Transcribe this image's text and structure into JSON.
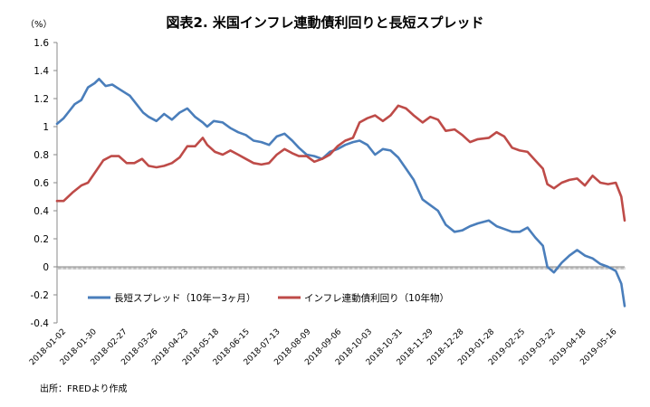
{
  "chart_data": {
    "type": "line",
    "title": "図表2. 米国インフレ連動債利回りと長短スプレッド",
    "unit_label": "（%）",
    "source": "出所：FREDより作成",
    "ylim": [
      -0.4,
      1.6
    ],
    "y_ticks": [
      1.6,
      1.4,
      1.2,
      1.0,
      0.8,
      0.6,
      0.4,
      0.2,
      0.0,
      -0.2,
      -0.4
    ],
    "y_tick_labels": [
      "1.6",
      "1.4",
      "1.2",
      "1",
      "0.8",
      "0.6",
      "0.4",
      "0.2",
      "0",
      "-0.2",
      "-0.4"
    ],
    "x_start": "2018-01-02",
    "x_end": "2019-05-31",
    "x_tick_labels": [
      "2018-01-02",
      "2018-01-30",
      "2018-02-27",
      "2018-03-26",
      "2018-04-23",
      "2018-05-18",
      "2018-06-15",
      "2018-07-13",
      "2018-08-09",
      "2018-09-06",
      "2018-10-03",
      "2018-10-31",
      "2018-11-29",
      "2018-12-28",
      "2019-01-28",
      "2019-02-25",
      "2019-03-22",
      "2019-04-18",
      "2019-05-16"
    ],
    "legend_position": "lower-center",
    "series": [
      {
        "name": "長短スプレッド（10年ー3ヶ月）",
        "color": "#4a7ebb",
        "points": [
          [
            "2018-01-02",
            1.02
          ],
          [
            "2018-01-08",
            1.06
          ],
          [
            "2018-01-12",
            1.1
          ],
          [
            "2018-01-18",
            1.16
          ],
          [
            "2018-01-24",
            1.19
          ],
          [
            "2018-01-30",
            1.28
          ],
          [
            "2018-02-05",
            1.31
          ],
          [
            "2018-02-09",
            1.34
          ],
          [
            "2018-02-15",
            1.29
          ],
          [
            "2018-02-21",
            1.3
          ],
          [
            "2018-02-27",
            1.27
          ],
          [
            "2018-03-05",
            1.24
          ],
          [
            "2018-03-09",
            1.22
          ],
          [
            "2018-03-15",
            1.16
          ],
          [
            "2018-03-21",
            1.1
          ],
          [
            "2018-03-26",
            1.07
          ],
          [
            "2018-04-02",
            1.04
          ],
          [
            "2018-04-09",
            1.09
          ],
          [
            "2018-04-16",
            1.05
          ],
          [
            "2018-04-23",
            1.1
          ],
          [
            "2018-04-30",
            1.13
          ],
          [
            "2018-05-07",
            1.07
          ],
          [
            "2018-05-14",
            1.03
          ],
          [
            "2018-05-18",
            1.0
          ],
          [
            "2018-05-24",
            1.04
          ],
          [
            "2018-06-01",
            1.03
          ],
          [
            "2018-06-08",
            0.99
          ],
          [
            "2018-06-15",
            0.96
          ],
          [
            "2018-06-22",
            0.94
          ],
          [
            "2018-06-29",
            0.9
          ],
          [
            "2018-07-06",
            0.89
          ],
          [
            "2018-07-13",
            0.87
          ],
          [
            "2018-07-20",
            0.93
          ],
          [
            "2018-07-27",
            0.95
          ],
          [
            "2018-08-03",
            0.9
          ],
          [
            "2018-08-09",
            0.85
          ],
          [
            "2018-08-16",
            0.8
          ],
          [
            "2018-08-23",
            0.79
          ],
          [
            "2018-08-30",
            0.77
          ],
          [
            "2018-09-06",
            0.82
          ],
          [
            "2018-09-13",
            0.84
          ],
          [
            "2018-09-20",
            0.87
          ],
          [
            "2018-09-27",
            0.89
          ],
          [
            "2018-10-03",
            0.9
          ],
          [
            "2018-10-10",
            0.87
          ],
          [
            "2018-10-17",
            0.8
          ],
          [
            "2018-10-24",
            0.84
          ],
          [
            "2018-10-31",
            0.83
          ],
          [
            "2018-11-07",
            0.78
          ],
          [
            "2018-11-14",
            0.7
          ],
          [
            "2018-11-21",
            0.62
          ],
          [
            "2018-11-29",
            0.48
          ],
          [
            "2018-12-06",
            0.44
          ],
          [
            "2018-12-13",
            0.4
          ],
          [
            "2018-12-20",
            0.3
          ],
          [
            "2018-12-28",
            0.25
          ],
          [
            "2019-01-04",
            0.26
          ],
          [
            "2019-01-11",
            0.29
          ],
          [
            "2019-01-18",
            0.31
          ],
          [
            "2019-01-28",
            0.33
          ],
          [
            "2019-02-04",
            0.29
          ],
          [
            "2019-02-11",
            0.27
          ],
          [
            "2019-02-18",
            0.25
          ],
          [
            "2019-02-25",
            0.25
          ],
          [
            "2019-03-04",
            0.28
          ],
          [
            "2019-03-11",
            0.21
          ],
          [
            "2019-03-18",
            0.15
          ],
          [
            "2019-03-22",
            0.0
          ],
          [
            "2019-03-28",
            -0.04
          ],
          [
            "2019-04-04",
            0.03
          ],
          [
            "2019-04-11",
            0.08
          ],
          [
            "2019-04-18",
            0.12
          ],
          [
            "2019-04-25",
            0.08
          ],
          [
            "2019-05-02",
            0.06
          ],
          [
            "2019-05-09",
            0.02
          ],
          [
            "2019-05-16",
            0.0
          ],
          [
            "2019-05-23",
            -0.03
          ],
          [
            "2019-05-28",
            -0.12
          ],
          [
            "2019-05-31",
            -0.28
          ]
        ]
      },
      {
        "name": "インフレ連動債利回り（10年物）",
        "color": "#be4b48",
        "points": [
          [
            "2018-01-02",
            0.47
          ],
          [
            "2018-01-08",
            0.47
          ],
          [
            "2018-01-16",
            0.53
          ],
          [
            "2018-01-24",
            0.58
          ],
          [
            "2018-01-30",
            0.6
          ],
          [
            "2018-02-06",
            0.68
          ],
          [
            "2018-02-13",
            0.76
          ],
          [
            "2018-02-20",
            0.79
          ],
          [
            "2018-02-27",
            0.79
          ],
          [
            "2018-03-06",
            0.74
          ],
          [
            "2018-03-13",
            0.74
          ],
          [
            "2018-03-20",
            0.77
          ],
          [
            "2018-03-26",
            0.72
          ],
          [
            "2018-04-02",
            0.71
          ],
          [
            "2018-04-09",
            0.72
          ],
          [
            "2018-04-16",
            0.74
          ],
          [
            "2018-04-23",
            0.78
          ],
          [
            "2018-04-30",
            0.86
          ],
          [
            "2018-05-07",
            0.86
          ],
          [
            "2018-05-14",
            0.92
          ],
          [
            "2018-05-18",
            0.87
          ],
          [
            "2018-05-25",
            0.82
          ],
          [
            "2018-06-01",
            0.8
          ],
          [
            "2018-06-08",
            0.83
          ],
          [
            "2018-06-15",
            0.8
          ],
          [
            "2018-06-22",
            0.77
          ],
          [
            "2018-06-29",
            0.74
          ],
          [
            "2018-07-06",
            0.73
          ],
          [
            "2018-07-13",
            0.74
          ],
          [
            "2018-07-20",
            0.8
          ],
          [
            "2018-07-27",
            0.84
          ],
          [
            "2018-08-03",
            0.81
          ],
          [
            "2018-08-09",
            0.79
          ],
          [
            "2018-08-16",
            0.79
          ],
          [
            "2018-08-23",
            0.75
          ],
          [
            "2018-08-30",
            0.77
          ],
          [
            "2018-09-06",
            0.8
          ],
          [
            "2018-09-13",
            0.86
          ],
          [
            "2018-09-20",
            0.9
          ],
          [
            "2018-09-27",
            0.92
          ],
          [
            "2018-10-03",
            1.03
          ],
          [
            "2018-10-10",
            1.06
          ],
          [
            "2018-10-17",
            1.08
          ],
          [
            "2018-10-24",
            1.04
          ],
          [
            "2018-10-31",
            1.08
          ],
          [
            "2018-11-07",
            1.15
          ],
          [
            "2018-11-14",
            1.13
          ],
          [
            "2018-11-21",
            1.08
          ],
          [
            "2018-11-29",
            1.03
          ],
          [
            "2018-12-06",
            1.07
          ],
          [
            "2018-12-13",
            1.05
          ],
          [
            "2018-12-20",
            0.97
          ],
          [
            "2018-12-28",
            0.98
          ],
          [
            "2019-01-04",
            0.94
          ],
          [
            "2019-01-11",
            0.89
          ],
          [
            "2019-01-18",
            0.91
          ],
          [
            "2019-01-28",
            0.92
          ],
          [
            "2019-02-04",
            0.96
          ],
          [
            "2019-02-11",
            0.93
          ],
          [
            "2019-02-18",
            0.85
          ],
          [
            "2019-02-25",
            0.83
          ],
          [
            "2019-03-04",
            0.82
          ],
          [
            "2019-03-11",
            0.76
          ],
          [
            "2019-03-18",
            0.7
          ],
          [
            "2019-03-22",
            0.59
          ],
          [
            "2019-03-28",
            0.56
          ],
          [
            "2019-04-04",
            0.6
          ],
          [
            "2019-04-11",
            0.62
          ],
          [
            "2019-04-18",
            0.63
          ],
          [
            "2019-04-25",
            0.58
          ],
          [
            "2019-05-02",
            0.65
          ],
          [
            "2019-05-09",
            0.6
          ],
          [
            "2019-05-16",
            0.59
          ],
          [
            "2019-05-23",
            0.6
          ],
          [
            "2019-05-28",
            0.5
          ],
          [
            "2019-05-31",
            0.33
          ]
        ]
      }
    ]
  }
}
